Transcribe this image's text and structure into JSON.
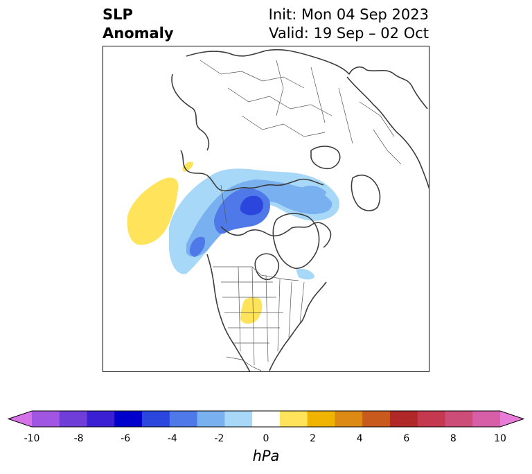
{
  "header": {
    "title_line1": "SLP",
    "title_line2": "Anomaly",
    "init": "Init: Mon 04 Sep 2023",
    "valid": "Valid: 19 Sep – 02 Oct"
  },
  "colorbar": {
    "unit": "hPa",
    "ticks": [
      "-10",
      "-8",
      "-6",
      "-4",
      "-2",
      "0",
      "2",
      "4",
      "6",
      "8",
      "10"
    ],
    "colors": [
      "#d672e8",
      "#a056e2",
      "#6f3ed9",
      "#3a1fd3",
      "#0000cc",
      "#2a46dc",
      "#4f78e8",
      "#78b0f0",
      "#a8d8f8",
      "#ffffff",
      "#ffe35a",
      "#f0b400",
      "#dc8a14",
      "#c85a1e",
      "#b02828",
      "#c43850",
      "#cc4d78",
      "#d65fa8",
      "#e87ad8"
    ]
  },
  "colors": {
    "negative_light": "#a8d8f8",
    "negative_mid": "#78b0f0",
    "negative_strong": "#4f78e8",
    "negative_core": "#2a46dc",
    "positive_light": "#ffe35a",
    "coastline": "#3c3c3c"
  },
  "map": {
    "projection": "polar-stereographic-north-america",
    "features": [
      "coastlines",
      "country-borders",
      "us-state-borders"
    ]
  }
}
